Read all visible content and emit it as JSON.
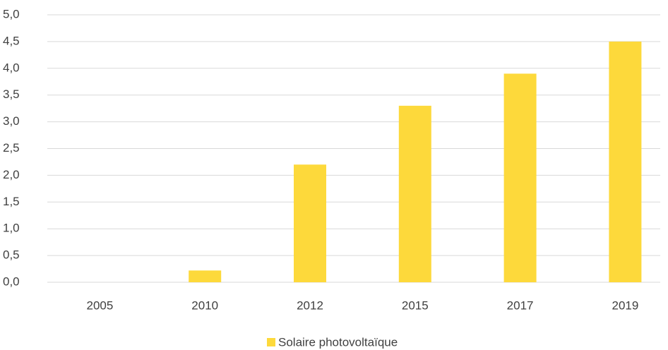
{
  "chart_data": {
    "type": "bar",
    "categories": [
      "2005",
      "2010",
      "2012",
      "2015",
      "2017",
      "2019"
    ],
    "series": [
      {
        "name": "Solaire photovoltaïque",
        "color": "#fdd93b",
        "values": [
          0,
          0.22,
          2.2,
          3.3,
          3.9,
          4.5
        ]
      }
    ],
    "ylim": [
      0,
      5
    ],
    "yticks": [
      {
        "value": 0,
        "label": "0,0"
      },
      {
        "value": 0.5,
        "label": "0,5"
      },
      {
        "value": 1,
        "label": "1,0"
      },
      {
        "value": 1.5,
        "label": "1,5"
      },
      {
        "value": 2,
        "label": "2,0"
      },
      {
        "value": 2.5,
        "label": "2,5"
      },
      {
        "value": 3,
        "label": "3,0"
      },
      {
        "value": 3.5,
        "label": "3,5"
      },
      {
        "value": 4,
        "label": "4,0"
      },
      {
        "value": 4.5,
        "label": "4,5"
      },
      {
        "value": 5,
        "label": "5,0"
      }
    ],
    "grid": true,
    "legend": "bottom"
  }
}
